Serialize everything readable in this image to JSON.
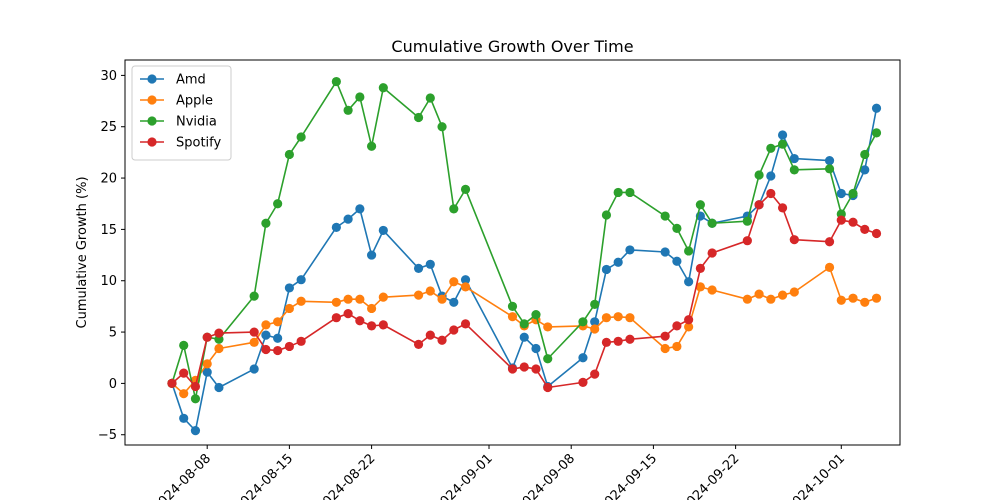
{
  "chart_data": {
    "type": "line",
    "title": "Cumulative Growth Over Time",
    "xlabel": "",
    "ylabel": "Cumulative Growth (%)",
    "ylim": [
      -6,
      31.5
    ],
    "xlim": [
      "2024-08-01",
      "2024-10-06"
    ],
    "yticks": [
      -5,
      0,
      5,
      10,
      15,
      20,
      25,
      30
    ],
    "xticks": [
      {
        "date": "2024-08-08",
        "label": "2024-08-08"
      },
      {
        "date": "2024-08-15",
        "label": "2024-08-15"
      },
      {
        "date": "2024-08-22",
        "label": "2024-08-22"
      },
      {
        "date": "2024-09-01",
        "label": "2024-09-01"
      },
      {
        "date": "2024-09-08",
        "label": "2024-09-08"
      },
      {
        "date": "2024-09-15",
        "label": "2024-09-15"
      },
      {
        "date": "2024-09-22",
        "label": "2024-09-22"
      },
      {
        "date": "2024-10-01",
        "label": "2024-10-01"
      }
    ],
    "grid": false,
    "legend_position": "top-left",
    "x": [
      "2024-08-05",
      "2024-08-06",
      "2024-08-07",
      "2024-08-08",
      "2024-08-09",
      "2024-08-12",
      "2024-08-13",
      "2024-08-14",
      "2024-08-15",
      "2024-08-16",
      "2024-08-19",
      "2024-08-20",
      "2024-08-21",
      "2024-08-22",
      "2024-08-23",
      "2024-08-26",
      "2024-08-27",
      "2024-08-28",
      "2024-08-29",
      "2024-08-30",
      "2024-09-03",
      "2024-09-04",
      "2024-09-05",
      "2024-09-06",
      "2024-09-09",
      "2024-09-10",
      "2024-09-11",
      "2024-09-12",
      "2024-09-13",
      "2024-09-16",
      "2024-09-17",
      "2024-09-18",
      "2024-09-19",
      "2024-09-20",
      "2024-09-23",
      "2024-09-24",
      "2024-09-25",
      "2024-09-26",
      "2024-09-27",
      "2024-09-30",
      "2024-10-01",
      "2024-10-02",
      "2024-10-03",
      "2024-10-04"
    ],
    "series": [
      {
        "name": "Amd",
        "color": "#1f77b4",
        "values": [
          0,
          -3.4,
          -4.6,
          1.1,
          -0.4,
          1.4,
          4.7,
          4.4,
          9.3,
          10.1,
          15.2,
          16.0,
          17.0,
          12.5,
          14.9,
          11.2,
          11.6,
          8.5,
          7.9,
          10.1,
          1.5,
          4.5,
          3.4,
          -0.3,
          2.5,
          6.0,
          11.1,
          11.8,
          13.0,
          12.8,
          11.9,
          9.9,
          16.3,
          15.6,
          16.3,
          17.4,
          20.2,
          24.2,
          21.9,
          21.7,
          18.5,
          18.3,
          20.8,
          26.8
        ]
      },
      {
        "name": "Apple",
        "color": "#ff7f0e",
        "values": [
          0,
          -1.0,
          0.3,
          1.9,
          3.4,
          4.0,
          5.7,
          6.0,
          7.3,
          8.0,
          7.9,
          8.2,
          8.2,
          7.3,
          8.4,
          8.6,
          9.0,
          8.2,
          9.9,
          9.4,
          6.5,
          5.6,
          6.2,
          5.5,
          5.6,
          5.3,
          6.4,
          6.5,
          6.4,
          3.4,
          3.6,
          5.5,
          9.4,
          9.1,
          8.2,
          8.7,
          8.2,
          8.6,
          8.9,
          11.3,
          8.1,
          8.3,
          7.9,
          8.3
        ]
      },
      {
        "name": "Nvidia",
        "color": "#2ca02c",
        "values": [
          0,
          3.7,
          -1.5,
          4.5,
          4.3,
          8.5,
          15.6,
          17.5,
          22.3,
          24.0,
          29.4,
          26.6,
          27.9,
          23.1,
          28.8,
          25.9,
          27.8,
          25.0,
          17.0,
          18.9,
          7.5,
          5.8,
          6.7,
          2.4,
          6.0,
          7.7,
          16.4,
          18.6,
          18.6,
          16.3,
          15.1,
          12.9,
          17.4,
          15.6,
          15.8,
          20.3,
          22.9,
          23.3,
          20.8,
          20.9,
          16.5,
          18.5,
          22.3,
          24.4
        ]
      },
      {
        "name": "Spotify",
        "color": "#d62728",
        "values": [
          0,
          1.0,
          -0.3,
          4.5,
          4.9,
          5.0,
          3.3,
          3.2,
          3.6,
          4.1,
          6.4,
          6.8,
          6.1,
          5.6,
          5.7,
          3.8,
          4.7,
          4.2,
          5.2,
          5.8,
          1.4,
          1.6,
          1.4,
          -0.4,
          0.1,
          0.9,
          4.0,
          4.1,
          4.3,
          4.6,
          5.6,
          6.2,
          11.2,
          12.7,
          13.9,
          17.4,
          18.5,
          17.1,
          14.0,
          13.8,
          15.9,
          15.7,
          15.0,
          14.6
        ]
      }
    ]
  }
}
